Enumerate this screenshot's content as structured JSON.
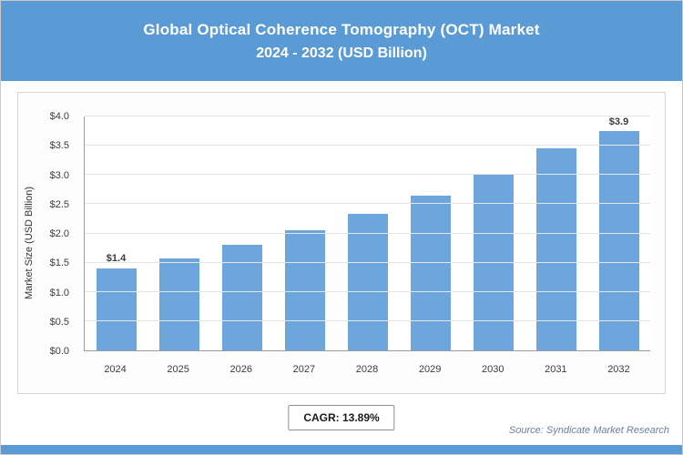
{
  "header": {
    "title_line1": "Global Optical Coherence Tomography (OCT) Market",
    "title_line2": "2024 - 2032 (USD Billion)"
  },
  "chart_data": {
    "type": "bar",
    "title": "Global Optical Coherence Tomography (OCT) Market 2024 - 2032 (USD Billion)",
    "categories": [
      "2024",
      "2025",
      "2026",
      "2027",
      "2028",
      "2029",
      "2030",
      "2031",
      "2032"
    ],
    "values": [
      1.4,
      1.58,
      1.8,
      2.05,
      2.33,
      2.65,
      3.02,
      3.45,
      3.9
    ],
    "data_labels": [
      "$1.4",
      "",
      "",
      "",
      "",
      "",
      "",
      "",
      "$3.9"
    ],
    "xlabel": "",
    "ylabel": "Market Size (USD Billion)",
    "ylim": [
      0,
      4.0
    ],
    "yticks": [
      "$0.0",
      "$0.5",
      "$1.0",
      "$1.5",
      "$2.0",
      "$2.5",
      "$3.0",
      "$3.5",
      "$4.0"
    ],
    "grid": true,
    "legend": "none",
    "bar_color": "#6ca6dc"
  },
  "footer": {
    "cagr_label": "CAGR: 13.89%",
    "source": "Source: Syndicate Market Research"
  },
  "colors": {
    "accent": "#5b9bd5",
    "bar": "#6ca6dc"
  }
}
